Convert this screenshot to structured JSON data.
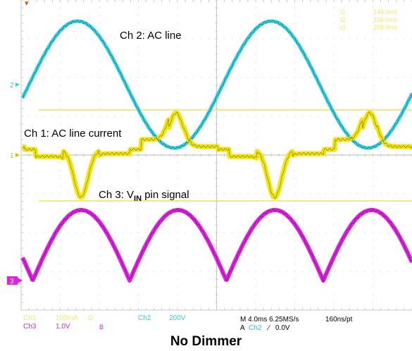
{
  "screen": {
    "background": "#ffffff",
    "grid_color": "#c8c8c8",
    "readout_color": "#f2e870"
  },
  "channels": {
    "ch1": {
      "marker": "1",
      "color": "#f5e600",
      "outline": "#4a4a00"
    },
    "ch2": {
      "marker": "2",
      "color": "#30d0e0",
      "outline": "#105060"
    },
    "ch3": {
      "marker": "3",
      "color": "#e020e0",
      "outline": "#500050"
    }
  },
  "trigger_marker": "▾",
  "annotations": {
    "ch2": "Ch 2: AC line",
    "ch1": "Ch 1: AC line current",
    "ch3_prefix": "Ch 3: V",
    "ch3_sub": "IN",
    "ch3_suffix": " pin signal"
  },
  "cursor_readouts": [
    {
      "label": "t1",
      "value": "148.0ms"
    },
    {
      "label": "t2",
      "value": "118.0ms"
    },
    {
      "label": "t3",
      "value": "208.0ms"
    }
  ],
  "status": {
    "ch1_name": "Ch1",
    "ch1_scale": "100mA",
    "ch1_unit": "Ω",
    "ch2_name": "Ch2",
    "ch2_scale": "200V",
    "ch3_name": "Ch3",
    "ch3_scale": "1.0V",
    "ch3_bw": "B",
    "timebase": "M 4.0ms 6.25MS/s",
    "record": "160ns/pt",
    "trigger_prefix": "A",
    "trigger_source": "Ch2",
    "trigger_slope": "∕",
    "trigger_level": "0.0V"
  },
  "footer_title": "No Dimmer"
}
